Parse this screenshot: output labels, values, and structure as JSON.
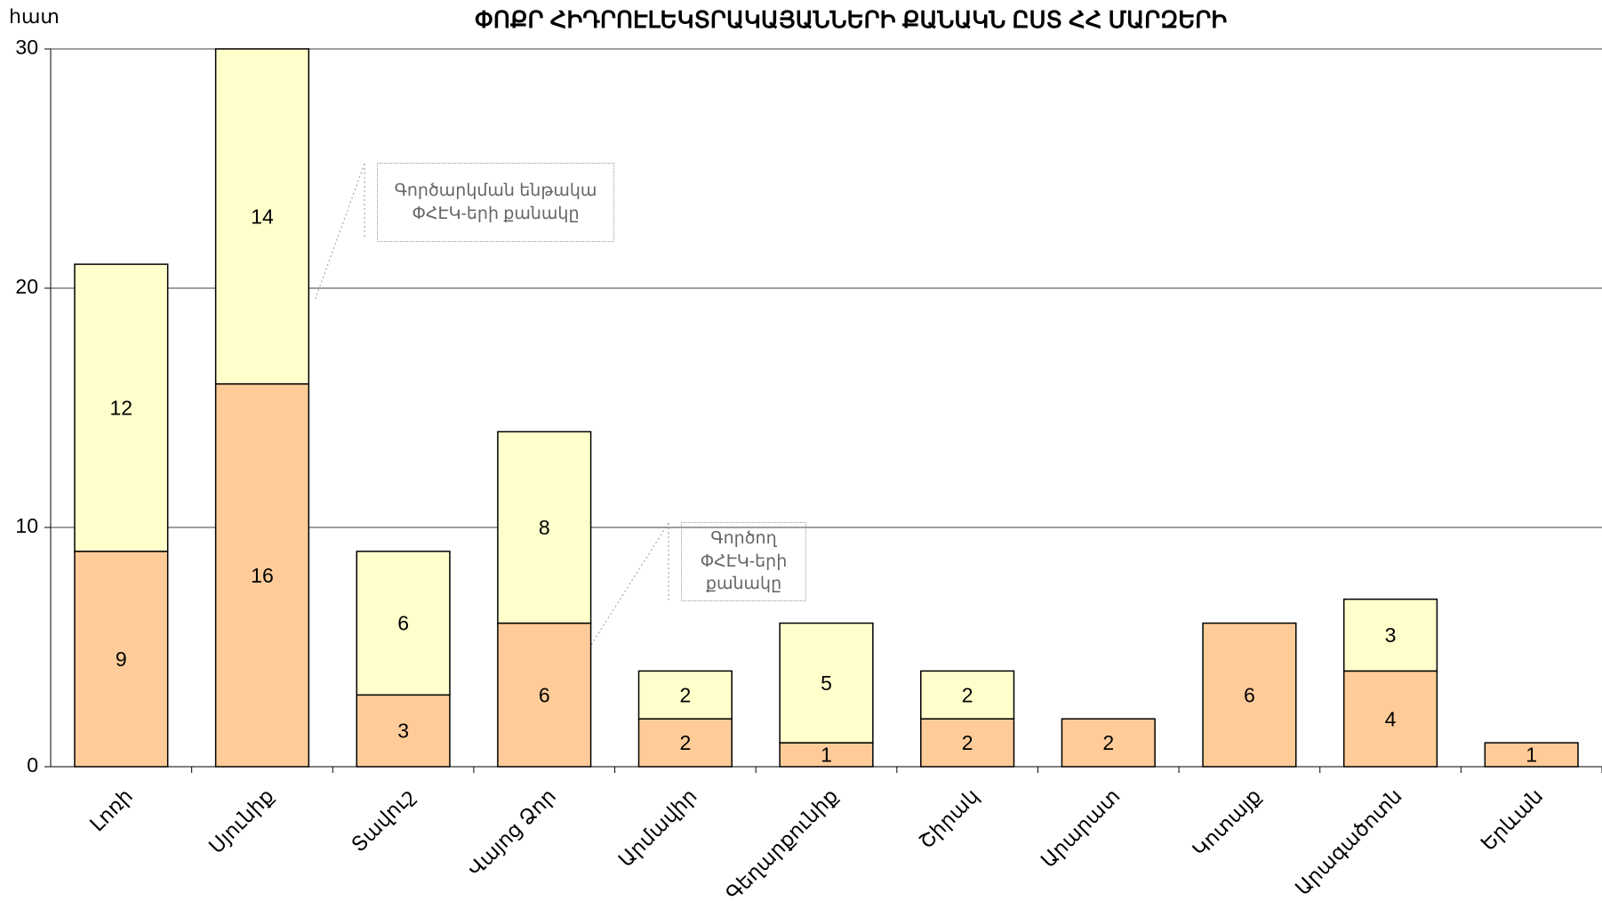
{
  "chart_data": {
    "type": "stacked_bar",
    "title": "ՓՈՔՐ ՀԻԴՐՈԷԼԵԿՏՐԱԿԱՅԱՆՆԵՐԻ ՔԱՆԱԿՆ ԸՍՏ ՀՀ ՄԱՐԶԵՐԻ",
    "y_label": "հատ",
    "categories": [
      "Լոռի",
      "Սյունիք",
      "Տավուշ",
      "Վայոց Ձոր",
      "Արմավիր",
      "Գեղարքունիք",
      "Շիրակ",
      "Արարատ",
      "Կոտայք",
      "Արագածոտն",
      "Երևան"
    ],
    "series": [
      {
        "name": "Գործող ՓՀԷԿ-երի քանակը",
        "color": "#FFCC99",
        "values": [
          9,
          16,
          3,
          6,
          2,
          1,
          2,
          2,
          6,
          4,
          1
        ]
      },
      {
        "name": "Գործարկման ենթակա ՓՀԷԿ-երի քանակը",
        "color": "#FFFFCC",
        "values": [
          12,
          14,
          6,
          8,
          2,
          5,
          2,
          null,
          null,
          3,
          null
        ]
      }
    ],
    "ylim": [
      0,
      30
    ],
    "yticks": [
      0,
      10,
      20,
      30
    ],
    "grid": true
  }
}
